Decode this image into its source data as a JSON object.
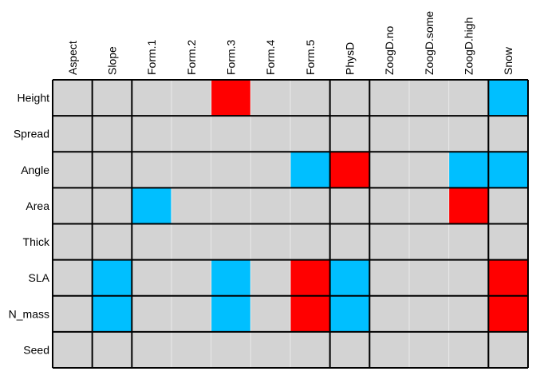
{
  "chart_data": {
    "type": "heatmap",
    "title": "",
    "xlabel": "",
    "ylabel": "",
    "columns": [
      "Aspect",
      "Slope",
      "Form.1",
      "Form.2",
      "Form.3",
      "Form.4",
      "Form.5",
      "PhysD",
      "ZoogD.no",
      "ZoogD.some",
      "ZoogD.high",
      "Snow"
    ],
    "rows": [
      "Height",
      "Spread",
      "Angle",
      "Area",
      "Thick",
      "SLA",
      "N_mass",
      "Seed"
    ],
    "values": [
      [
        0,
        0,
        0,
        0,
        1,
        0,
        0,
        0,
        0,
        0,
        0,
        -1
      ],
      [
        0,
        0,
        0,
        0,
        0,
        0,
        0,
        0,
        0,
        0,
        0,
        0
      ],
      [
        0,
        0,
        0,
        0,
        0,
        0,
        -1,
        1,
        0,
        0,
        -1,
        -1
      ],
      [
        0,
        0,
        -1,
        0,
        0,
        0,
        0,
        0,
        0,
        0,
        1,
        0
      ],
      [
        0,
        0,
        0,
        0,
        0,
        0,
        0,
        0,
        0,
        0,
        0,
        0
      ],
      [
        0,
        -1,
        0,
        0,
        -1,
        0,
        1,
        -1,
        0,
        0,
        0,
        1
      ],
      [
        0,
        -1,
        0,
        0,
        -1,
        0,
        1,
        -1,
        0,
        0,
        0,
        1
      ],
      [
        0,
        0,
        0,
        0,
        0,
        0,
        0,
        0,
        0,
        0,
        0,
        0
      ]
    ],
    "color_map": {
      "positive": "#ff0000",
      "negative": "#00bfff",
      "zero": "#d3d3d3"
    },
    "grid_line_color": "#e8e8e8",
    "border_color": "#000000",
    "group_separators_after_column": [
      0,
      1,
      6,
      7,
      10
    ]
  }
}
